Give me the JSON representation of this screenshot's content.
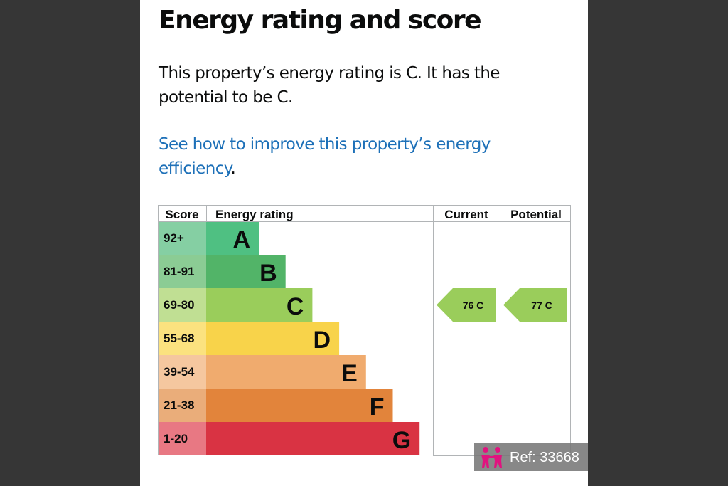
{
  "section": {
    "title": "Energy rating and score",
    "description": "This property’s energy rating is C. It has the potential to be C.",
    "improve_link": "See how to improve this property’s energy efficiency",
    "improve_suffix": "."
  },
  "chart_data": {
    "type": "table",
    "headers": {
      "score": "Score",
      "rating": "Energy rating",
      "current": "Current",
      "potential": "Potential"
    },
    "bands": [
      {
        "score": "92+",
        "letter": "A",
        "color": "#4fc082",
        "tint": "#85cfa3"
      },
      {
        "score": "81-91",
        "letter": "B",
        "color": "#52b468",
        "tint": "#8bcc94"
      },
      {
        "score": "69-80",
        "letter": "C",
        "color": "#9acd5b",
        "tint": "#c0df93"
      },
      {
        "score": "55-68",
        "letter": "D",
        "color": "#f8d34a",
        "tint": "#fbe27f"
      },
      {
        "score": "39-54",
        "letter": "E",
        "color": "#f0ab6e",
        "tint": "#f5c79f"
      },
      {
        "score": "21-38",
        "letter": "F",
        "color": "#e2843b",
        "tint": "#eaad7a"
      },
      {
        "score": "1-20",
        "letter": "G",
        "color": "#d93343",
        "tint": "#e87883"
      }
    ],
    "current": {
      "score": 76,
      "letter": "C",
      "label": "76  C",
      "color": "#9acd5b"
    },
    "potential": {
      "score": 77,
      "letter": "C",
      "label": "77  C",
      "color": "#9acd5b"
    }
  },
  "watermark": {
    "ref_text": "Ref: 33668",
    "icon": "people-icon",
    "icon_color": "#e0137f"
  }
}
